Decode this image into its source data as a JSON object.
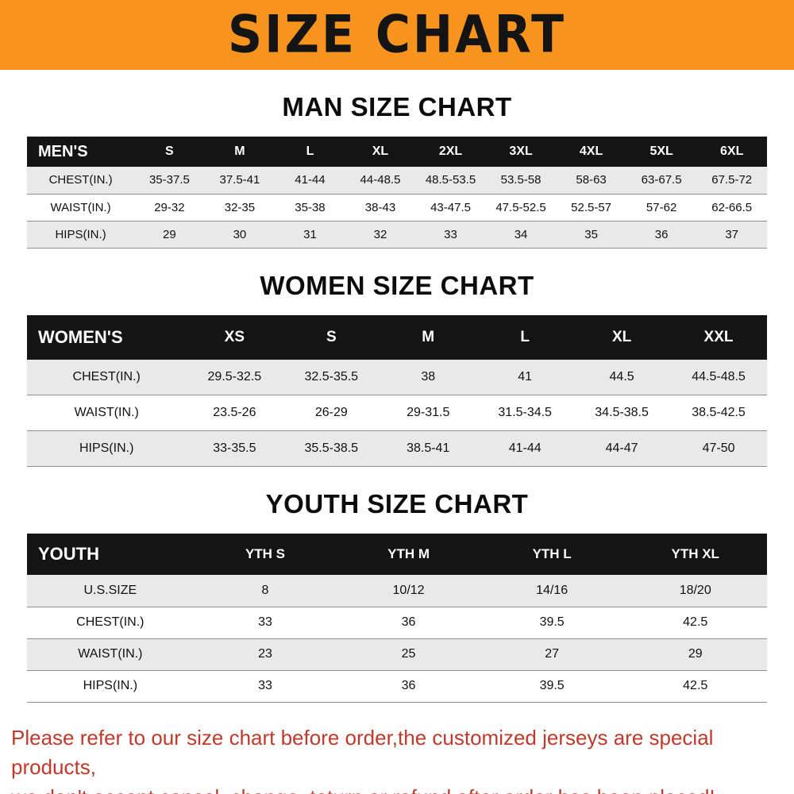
{
  "page": {
    "banner_title": "SIZE CHART",
    "banner_bg": "#F7941E",
    "footer": {
      "line1": "Please refer to our size chart before order,the customized jerseys are special products,",
      "line2": "we don't accept cancel, change, teturn or refund after order has been placed!",
      "color": "#C0392B"
    }
  },
  "tables": {
    "men": {
      "title": "MAN SIZE CHART",
      "header_label": "MEN'S",
      "columns": [
        "S",
        "M",
        "L",
        "XL",
        "2XL",
        "3XL",
        "4XL",
        "5XL",
        "6XL"
      ],
      "rows": [
        {
          "label": "CHEST(IN.)",
          "values": [
            "35-37.5",
            "37.5-41",
            "41-44",
            "44-48.5",
            "48.5-53.5",
            "53.5-58",
            "58-63",
            "63-67.5",
            "67.5-72"
          ]
        },
        {
          "label": "WAIST(IN.)",
          "values": [
            "29-32",
            "32-35",
            "35-38",
            "38-43",
            "43-47.5",
            "47.5-52.5",
            "52.5-57",
            "57-62",
            "62-66.5"
          ]
        },
        {
          "label": "HIPS(IN.)",
          "values": [
            "29",
            "30",
            "31",
            "32",
            "33",
            "34",
            "35",
            "36",
            "37"
          ]
        }
      ]
    },
    "women": {
      "title": "WOMEN SIZE CHART",
      "header_label": "WOMEN'S",
      "columns": [
        "XS",
        "S",
        "M",
        "L",
        "XL",
        "XXL"
      ],
      "rows": [
        {
          "label": "CHEST(IN.)",
          "values": [
            "29.5-32.5",
            "32.5-35.5",
            "38",
            "41",
            "44.5",
            "44.5-48.5"
          ]
        },
        {
          "label": "WAIST(IN.)",
          "values": [
            "23.5-26",
            "26-29",
            "29-31.5",
            "31.5-34.5",
            "34.5-38.5",
            "38.5-42.5"
          ]
        },
        {
          "label": "HIPS(IN.)",
          "values": [
            "33-35.5",
            "35.5-38.5",
            "38.5-41",
            "41-44",
            "44-47",
            "47-50"
          ]
        }
      ]
    },
    "youth": {
      "title": "YOUTH SIZE CHART",
      "header_label": "YOUTH",
      "columns": [
        "YTH S",
        "YTH M",
        "YTH L",
        "YTH XL"
      ],
      "rows": [
        {
          "label": "U.S.SIZE",
          "values": [
            "8",
            "10/12",
            "14/16",
            "18/20"
          ]
        },
        {
          "label": "CHEST(IN.)",
          "values": [
            "33",
            "36",
            "39.5",
            "42.5"
          ]
        },
        {
          "label": "WAIST(IN.)",
          "values": [
            "23",
            "25",
            "27",
            "29"
          ]
        },
        {
          "label": "HIPS(IN.)",
          "values": [
            "33",
            "36",
            "39.5",
            "42.5"
          ]
        }
      ]
    }
  }
}
